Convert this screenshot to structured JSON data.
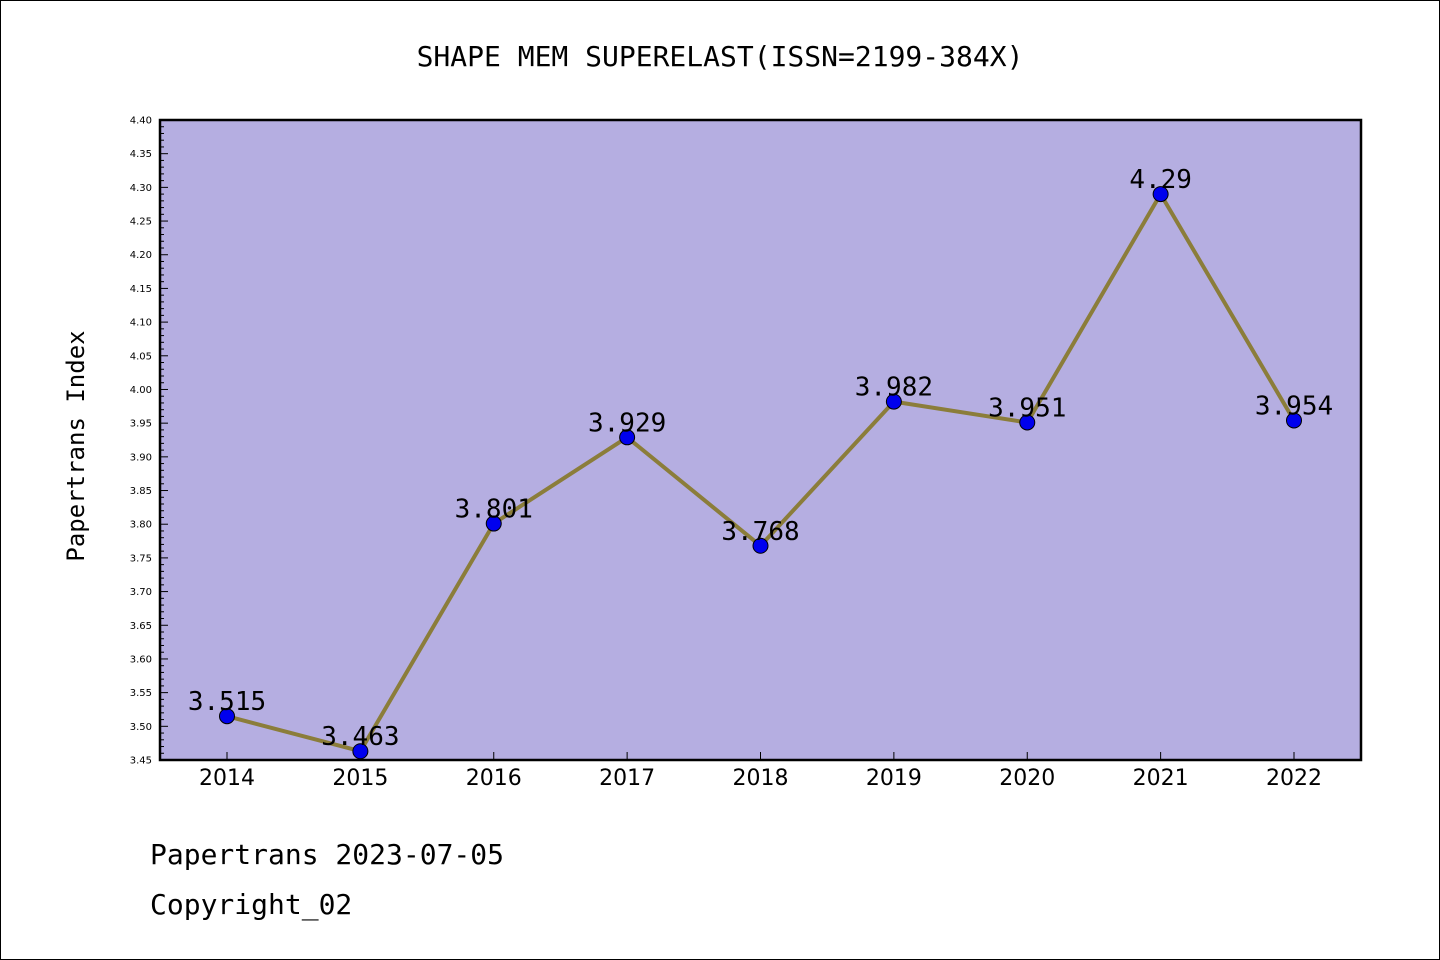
{
  "chart_data": {
    "type": "line",
    "title": "SHAPE MEM SUPERELAST(ISSN=2199-384X)",
    "xlabel": "",
    "ylabel": "Papertrans Index",
    "categories": [
      "2014",
      "2015",
      "2016",
      "2017",
      "2018",
      "2019",
      "2020",
      "2021",
      "2022"
    ],
    "values": [
      3.515,
      3.463,
      3.801,
      3.929,
      3.768,
      3.982,
      3.951,
      4.29,
      3.954
    ],
    "data_labels": [
      "3.515",
      "3.463",
      "3.801",
      "3.929",
      "3.768",
      "3.982",
      "3.951",
      "4.29",
      "3.954"
    ],
    "ylim": [
      3.45,
      4.4
    ],
    "yticks": [
      "3.45",
      "3.50",
      "3.55",
      "3.60",
      "3.65",
      "3.70",
      "3.75",
      "3.80",
      "3.85",
      "3.90",
      "3.95",
      "4.00",
      "4.05",
      "4.10",
      "4.15",
      "4.20",
      "4.25",
      "4.30",
      "4.35",
      "4.40"
    ],
    "grid": false,
    "colors": {
      "plot_background": "#b5aee1",
      "line": "#8b7d3a",
      "marker": "#0000ee"
    }
  },
  "footer": {
    "date_line": "Papertrans 2023-07-05",
    "copyright": "Copyright_02"
  }
}
